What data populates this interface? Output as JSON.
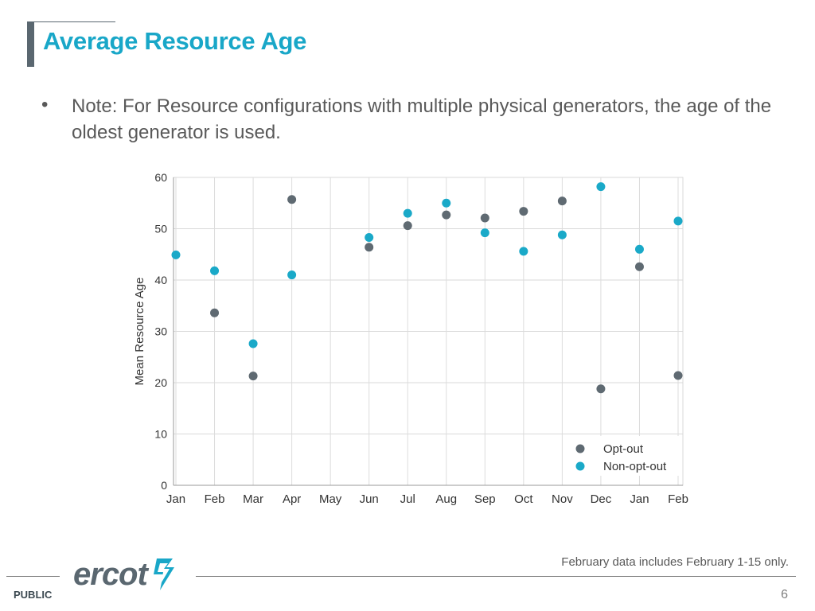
{
  "slide": {
    "title": "Average Resource Age",
    "bullet_symbol": "•",
    "note": "Note: For Resource configurations with multiple physical generators, the age of the oldest generator is used.",
    "footnote": "February data includes February 1-15 only.",
    "classification": "PUBLIC",
    "page_number": "6",
    "logo_text": "ercot"
  },
  "colors": {
    "title": "#19a7c8",
    "opt_out": "#5f6a72",
    "non_opt_out": "#1aa9c8"
  },
  "chart_data": {
    "type": "scatter",
    "title": "",
    "xlabel": "",
    "ylabel": "Mean Resource Age",
    "categories": [
      "Jan",
      "Feb",
      "Mar",
      "Apr",
      "May",
      "Jun",
      "Jul",
      "Aug",
      "Sep",
      "Oct",
      "Nov",
      "Dec",
      "Jan",
      "Feb"
    ],
    "ylim": [
      0,
      60
    ],
    "yticks": [
      0,
      10,
      20,
      30,
      40,
      50,
      60
    ],
    "grid": true,
    "legend_position": "bottom-right",
    "series": [
      {
        "name": "Opt-out",
        "color": "#5f6a72",
        "values": [
          null,
          33.6,
          21.3,
          55.7,
          null,
          46.4,
          50.6,
          52.7,
          52.1,
          53.4,
          55.4,
          18.8,
          42.6,
          21.4
        ]
      },
      {
        "name": "Non-opt-out",
        "color": "#1aa9c8",
        "values": [
          44.9,
          41.8,
          27.6,
          41.0,
          null,
          48.3,
          53.0,
          55.0,
          49.2,
          45.6,
          48.8,
          58.2,
          46.0,
          51.5
        ]
      }
    ]
  }
}
